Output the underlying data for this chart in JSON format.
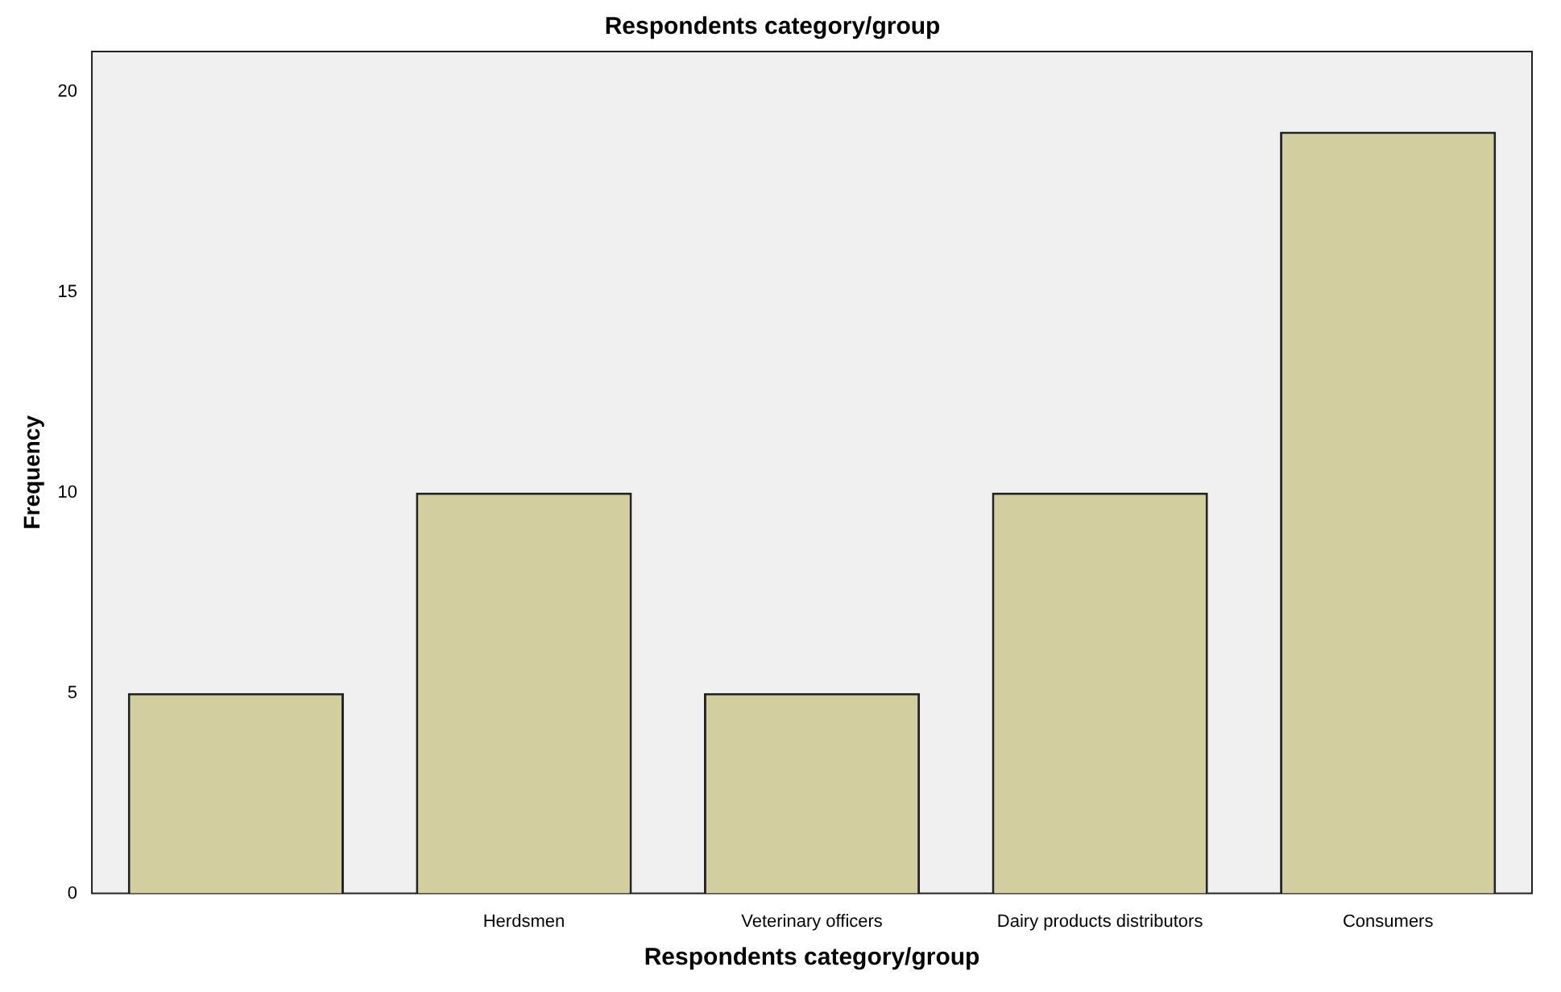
{
  "chart_data": {
    "type": "bar",
    "title": "Respondents category/group",
    "xlabel": "Respondents category/group",
    "ylabel": "Frequency",
    "categories": [
      null,
      "Herdsmen",
      "Veterinary officers",
      "Dairy products distributors",
      "Consumers"
    ],
    "values": [
      5,
      10,
      5,
      10,
      19
    ],
    "color": "#d3cea0",
    "ylim": [
      0,
      21
    ],
    "yticks": [
      0,
      5,
      10,
      15,
      20
    ],
    "grid": false,
    "legend": false
  }
}
